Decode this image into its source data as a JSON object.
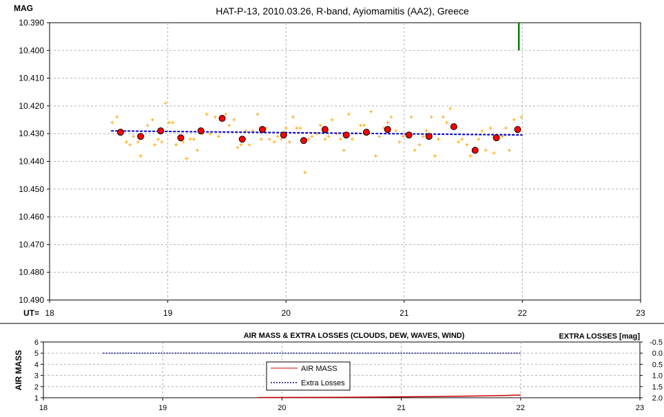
{
  "chart_data": [
    {
      "type": "scatter",
      "title": "HAT-P-13, 2010.03.26, R-band, Ayiomamitis (AA2), Greece",
      "ylabel": "MAG",
      "xlabel": "UT=",
      "xlim": [
        18,
        23
      ],
      "ylim": [
        10.39,
        10.49
      ],
      "y_inverted": true,
      "x_ticks": [
        "18",
        "19",
        "20",
        "21",
        "22",
        "23"
      ],
      "y_ticks": [
        "10.390",
        "10.400",
        "10.410",
        "10.420",
        "10.430",
        "10.440",
        "10.450",
        "10.460",
        "10.470",
        "10.480",
        "10.490"
      ],
      "grid": true,
      "colors": {
        "raw": "#ffa500",
        "binned_fill": "#ff0000",
        "trend": "#0000cc",
        "marker": "#008000"
      },
      "series": [
        {
          "kind": "raw",
          "x": [
            18.53,
            18.57,
            18.61,
            18.65,
            18.68,
            18.71,
            18.75,
            18.77,
            18.79,
            18.83,
            18.87,
            18.89,
            18.92,
            18.95,
            18.98,
            19.01,
            19.04,
            19.07,
            19.1,
            19.13,
            19.16,
            19.19,
            19.22,
            19.25,
            19.29,
            19.33,
            19.36,
            19.4,
            19.43,
            19.46,
            19.49,
            19.52,
            19.56,
            19.59,
            19.62,
            19.66,
            19.69,
            19.72,
            19.76,
            19.79,
            19.83,
            19.86,
            19.9,
            19.93,
            19.96,
            20.0,
            20.03,
            20.06,
            20.09,
            20.12,
            20.16,
            20.19,
            20.22,
            20.26,
            20.29,
            20.33,
            20.36,
            20.39,
            20.43,
            20.46,
            20.49,
            20.53,
            20.56,
            20.59,
            20.63,
            20.66,
            20.69,
            20.72,
            20.76,
            20.79,
            20.83,
            20.86,
            20.89,
            20.93,
            20.96,
            20.99,
            21.03,
            21.06,
            21.09,
            21.13,
            21.16,
            21.19,
            21.23,
            21.26,
            21.29,
            21.33,
            21.36,
            21.39,
            21.43,
            21.46,
            21.49,
            21.53,
            21.56,
            21.59,
            21.63,
            21.66,
            21.69,
            21.73,
            21.76,
            21.79,
            21.83,
            21.86,
            21.89,
            21.93,
            21.96,
            21.99
          ],
          "y": [
            10.426,
            10.424,
            10.429,
            10.433,
            10.434,
            10.431,
            10.433,
            10.438,
            10.431,
            10.427,
            10.425,
            10.434,
            10.432,
            10.433,
            10.419,
            10.426,
            10.426,
            10.434,
            10.432,
            10.433,
            10.439,
            10.432,
            10.432,
            10.436,
            10.43,
            10.423,
            10.43,
            10.424,
            10.431,
            10.425,
            10.423,
            10.427,
            10.425,
            10.435,
            10.434,
            10.429,
            10.434,
            10.429,
            10.423,
            10.432,
            10.428,
            10.432,
            10.433,
            10.431,
            10.432,
            10.428,
            10.433,
            10.424,
            10.428,
            10.428,
            10.444,
            10.432,
            10.431,
            10.43,
            10.427,
            10.432,
            10.431,
            10.425,
            10.43,
            10.432,
            10.436,
            10.423,
            10.432,
            10.43,
            10.427,
            10.427,
            10.429,
            10.422,
            10.438,
            10.431,
            10.428,
            10.426,
            10.424,
            10.429,
            10.433,
            10.431,
            10.43,
            10.424,
            10.436,
            10.434,
            10.431,
            10.429,
            10.424,
            10.438,
            10.432,
            10.424,
            10.426,
            10.421,
            10.428,
            10.433,
            10.432,
            10.434,
            10.438,
            10.436,
            10.432,
            10.429,
            10.436,
            10.428,
            10.437,
            10.432,
            10.431,
            10.428,
            10.436,
            10.425,
            10.428,
            10.424
          ]
        },
        {
          "kind": "binned",
          "x": [
            18.6,
            18.77,
            18.94,
            19.11,
            19.28,
            19.46,
            19.63,
            19.8,
            19.98,
            20.15,
            20.33,
            20.51,
            20.68,
            20.86,
            21.04,
            21.21,
            21.42,
            21.6,
            21.78,
            21.96
          ],
          "y": [
            10.4295,
            10.431,
            10.429,
            10.4315,
            10.429,
            10.4245,
            10.432,
            10.4285,
            10.4305,
            10.4325,
            10.4285,
            10.4305,
            10.4295,
            10.4285,
            10.4305,
            10.431,
            10.4275,
            10.436,
            10.4315,
            10.4285
          ]
        },
        {
          "kind": "trend",
          "x": [
            18.52,
            22.0
          ],
          "y": [
            10.429,
            10.4305
          ]
        },
        {
          "kind": "marker",
          "x": [
            21.97,
            21.97
          ],
          "y": [
            10.39,
            10.4
          ]
        }
      ]
    },
    {
      "type": "line",
      "title": "AIR MASS & EXTRA LOSSES (CLOUDS, DEW, WAVES, WIND)",
      "ylabel": "AIR MASS",
      "y2label": "EXTRA LOSSES [mag]",
      "xlim": [
        18,
        23
      ],
      "ylim": [
        1,
        6
      ],
      "y2lim": [
        -0.5,
        2.0
      ],
      "x_ticks": [
        "18",
        "19",
        "20",
        "21",
        "22",
        "23"
      ],
      "y_ticks": [
        "1",
        "2",
        "3",
        "4",
        "5",
        "6"
      ],
      "y2_ticks": [
        "-0.5",
        "0.0",
        "0.5",
        "1.0",
        "1.5",
        "2.0"
      ],
      "grid": true,
      "legend_position": "center",
      "series": [
        {
          "name": "AIR MASS",
          "color": "#cc0000",
          "x": [
            19.8,
            20.1,
            20.4,
            20.8,
            21.1,
            21.4,
            21.7,
            21.85,
            22.0
          ],
          "y": [
            1.02,
            1.03,
            1.04,
            1.06,
            1.09,
            1.12,
            1.17,
            1.2,
            1.24
          ]
        },
        {
          "name": "Extra Losses",
          "color": "#000080",
          "axis": "right",
          "x": [
            18.5,
            22.0
          ],
          "y": [
            0.0,
            0.0
          ]
        }
      ]
    }
  ]
}
